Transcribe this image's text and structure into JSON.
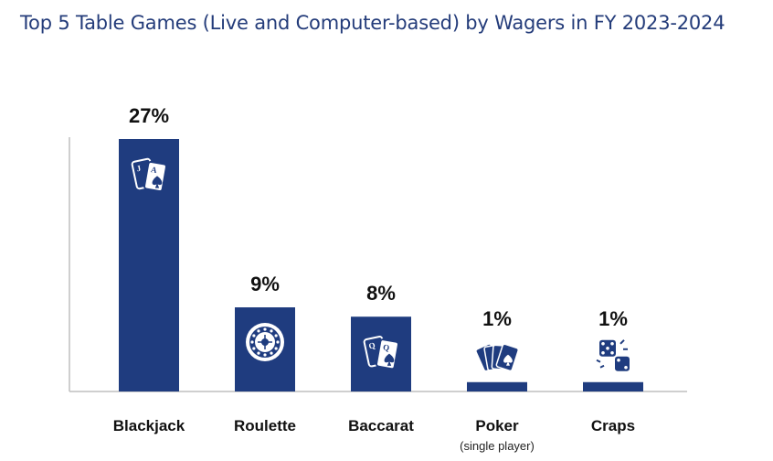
{
  "chart_data": {
    "type": "bar",
    "title": "Top 5 Table Games (Live and Computer-based) by Wagers in FY 2023-2024",
    "categories": [
      "Blackjack",
      "Roulette",
      "Baccarat",
      "Poker",
      "Craps"
    ],
    "category_sublabels": [
      "",
      "",
      "",
      "(single player)",
      ""
    ],
    "values": [
      27,
      9,
      8,
      1,
      1
    ],
    "value_labels": [
      "27%",
      "9%",
      "8%",
      "1%",
      "1%"
    ],
    "unit": "%",
    "ylim": [
      0,
      27
    ],
    "grid": false,
    "legend": "none",
    "icons": [
      "blackjack-cards-icon",
      "roulette-wheel-icon",
      "baccarat-cards-icon",
      "poker-hand-icon",
      "dice-icon"
    ],
    "colors": {
      "bar": "#1f3c7f",
      "axis": "#bfbfbf",
      "title": "#243c7a",
      "text": "#111111"
    }
  }
}
